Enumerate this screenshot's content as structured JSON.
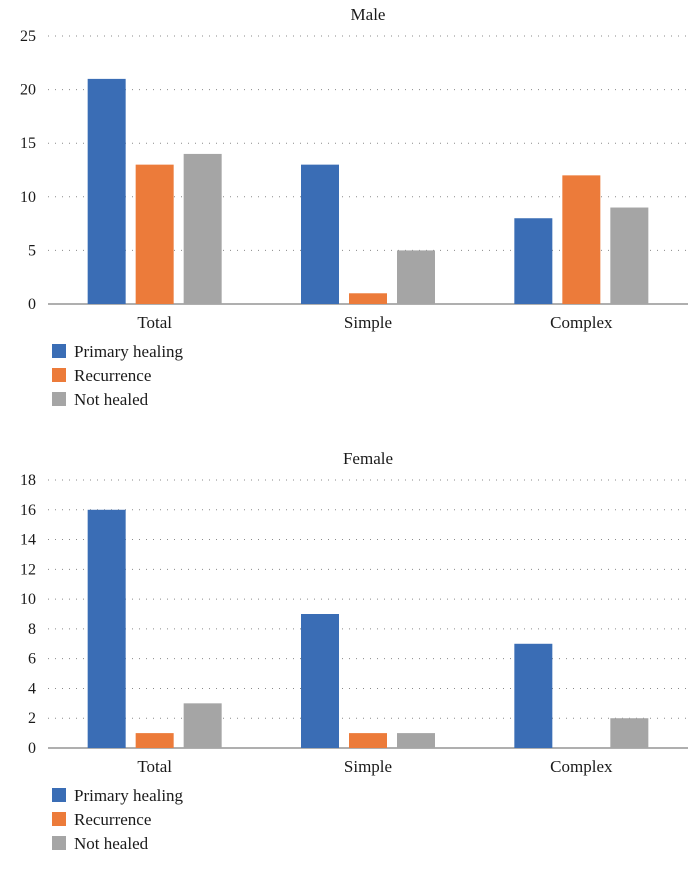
{
  "chart_data": [
    {
      "type": "bar",
      "title": "Male",
      "categories": [
        "Total",
        "Simple",
        "Complex"
      ],
      "series": [
        {
          "name": "Primary healing",
          "values": [
            21,
            13,
            8
          ],
          "color": "#3a6db5"
        },
        {
          "name": "Recurrence",
          "values": [
            13,
            1,
            12
          ],
          "color": "#ec7b3a"
        },
        {
          "name": "Not healed",
          "values": [
            14,
            5,
            9
          ],
          "color": "#a5a5a5"
        }
      ],
      "ylim": [
        0,
        25
      ],
      "yticks": [
        0,
        5,
        10,
        15,
        20,
        25
      ],
      "grid": "dotted horizontal",
      "legend": "bottom-left"
    },
    {
      "type": "bar",
      "title": "Female",
      "categories": [
        "Total",
        "Simple",
        "Complex"
      ],
      "series": [
        {
          "name": "Primary healing",
          "values": [
            16,
            9,
            7
          ],
          "color": "#3a6db5"
        },
        {
          "name": "Recurrence",
          "values": [
            1,
            1,
            0
          ],
          "color": "#ec7b3a"
        },
        {
          "name": "Not healed",
          "values": [
            3,
            1,
            2
          ],
          "color": "#a5a5a5"
        }
      ],
      "ylim": [
        0,
        18
      ],
      "yticks": [
        0,
        2,
        4,
        6,
        8,
        10,
        12,
        14,
        16,
        18
      ],
      "grid": "dotted horizontal",
      "legend": "bottom-left"
    }
  ]
}
